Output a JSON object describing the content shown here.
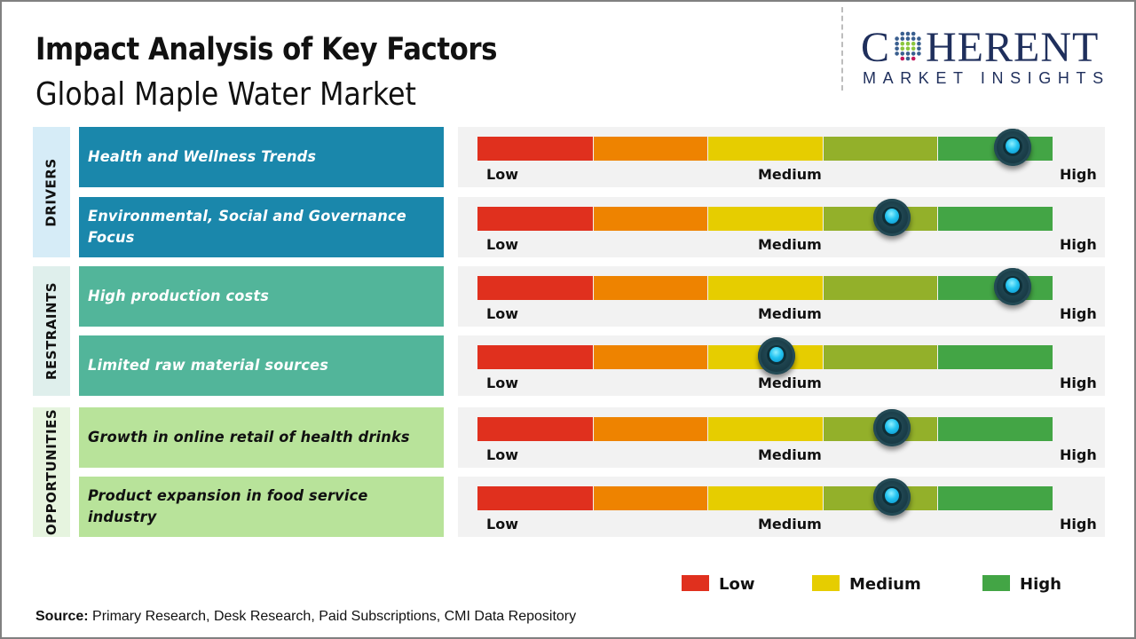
{
  "header": {
    "title": "Impact Analysis of Key Factors",
    "subtitle": "Global Maple Water Market"
  },
  "logo": {
    "brand_first_letter": "C",
    "brand_rest": "HERENT",
    "tagline": "MARKET INSIGHTS",
    "icon": "globe-dots-icon",
    "colors": {
      "text": "#1f2f5c",
      "dot_blue": "#3a5f8f",
      "dot_green": "#8cc63f",
      "dot_pink": "#c2185b"
    }
  },
  "scale_colors": [
    "#e0301e",
    "#ee8300",
    "#e6cd00",
    "#93b02a",
    "#43a545"
  ],
  "scale_labels": {
    "low": "Low",
    "medium": "Medium",
    "high": "High"
  },
  "categories": [
    {
      "label": "DRIVERS",
      "bg": "#d6ecf7",
      "factor_bg": "#1a87ab",
      "factor_text_color": "#ffffff"
    },
    {
      "label": "RESTRAINTS",
      "bg": "#dfefec",
      "factor_bg": "#52b59a",
      "factor_text_color": "#ffffff"
    },
    {
      "label": "OPPORTUNITIES",
      "bg": "#e6f4df",
      "factor_bg": "#b8e39a",
      "factor_text_color": "#111111"
    }
  ],
  "chart_data": {
    "type": "gauge-table",
    "title": "Impact Analysis of Key Factors",
    "subtitle": "Global Maple Water Market",
    "scale": {
      "min": 0,
      "max": 1,
      "ticks": [
        "Low",
        "Medium",
        "High"
      ],
      "segments": 5
    },
    "rows": [
      {
        "category": "DRIVERS",
        "factor": "Health and Wellness Trends",
        "impact": 0.93,
        "level": "High"
      },
      {
        "category": "DRIVERS",
        "factor": "Environmental, Social and Governance Focus",
        "impact": 0.72,
        "level": "Medium-High"
      },
      {
        "category": "RESTRAINTS",
        "factor": "High production costs",
        "impact": 0.93,
        "level": "High"
      },
      {
        "category": "RESTRAINTS",
        "factor": "Limited raw material sources",
        "impact": 0.52,
        "level": "Medium"
      },
      {
        "category": "OPPORTUNITIES",
        "factor": "Growth in online retail of health drinks",
        "impact": 0.72,
        "level": "Medium-High"
      },
      {
        "category": "OPPORTUNITIES",
        "factor": "Product expansion in food service industry",
        "impact": 0.72,
        "level": "Medium-High"
      }
    ],
    "legend": [
      {
        "label": "Low",
        "color": "#e0301e"
      },
      {
        "label": "Medium",
        "color": "#e6cd00"
      },
      {
        "label": "High",
        "color": "#43a545"
      }
    ],
    "legend_position": "bottom-right"
  },
  "footer": {
    "source_label": "Source:",
    "source_text": " Primary Research, Desk Research, Paid Subscriptions, CMI Data Repository"
  }
}
